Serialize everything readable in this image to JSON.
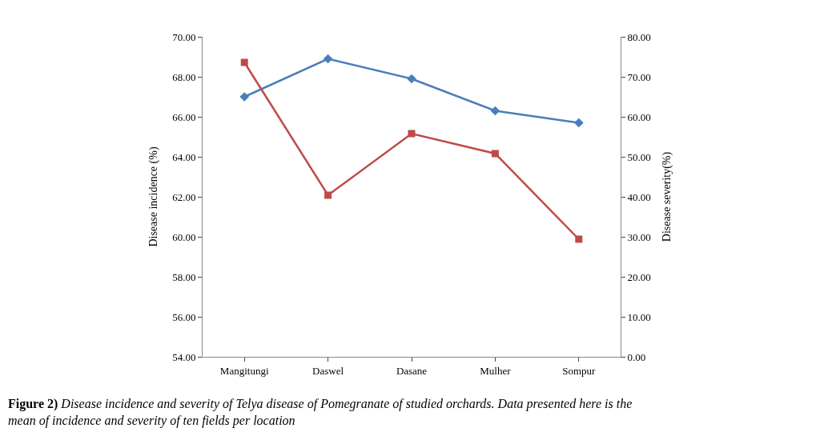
{
  "chart_data": {
    "type": "line",
    "ylabel": "Disease incidence (%)",
    "y2label": "Disease severity(%)",
    "categories": [
      "Mangitungi",
      "Daswel",
      "Dasane",
      "Mulher",
      "Sompur"
    ],
    "series": [
      {
        "color": "#4a7ebb",
        "marker": "diamond",
        "values": [
          67.0,
          68.9,
          67.9,
          66.3,
          65.7
        ]
      },
      {
        "color": "#be4b48",
        "marker": "square",
        "axis": "y2",
        "values": [
          73.6,
          40.4,
          55.8,
          50.8,
          29.4
        ]
      }
    ],
    "ylim": [
      54,
      70
    ],
    "yticks": [
      {
        "value": 54,
        "label": "54.00"
      },
      {
        "value": 56,
        "label": "56.00"
      },
      {
        "value": 58,
        "label": "58.00"
      },
      {
        "value": 60,
        "label": "60.00"
      },
      {
        "value": 62,
        "label": "62.00"
      },
      {
        "value": 64,
        "label": "64.00"
      },
      {
        "value": 66,
        "label": "66.00"
      },
      {
        "value": 68,
        "label": "68.00"
      },
      {
        "value": 70,
        "label": "70.00"
      }
    ],
    "y2lim": [
      0,
      80
    ],
    "y2ticks": [
      {
        "value": 0,
        "label": "0.00"
      },
      {
        "value": 10,
        "label": "10.00"
      },
      {
        "value": 20,
        "label": "20.00"
      },
      {
        "value": 30,
        "label": "30.00"
      },
      {
        "value": 40,
        "label": "40.00"
      },
      {
        "value": 50,
        "label": "50.00"
      },
      {
        "value": 60,
        "label": "60.00"
      },
      {
        "value": 70,
        "label": "70.00"
      },
      {
        "value": 80,
        "label": "80.00"
      }
    ],
    "annotations": [
      "Figure 2) Disease incidence and severity of Telya disease of Pomegranate of studied orchards. Data presented here is the mean of incidence and severity of ten fields per location"
    ]
  }
}
